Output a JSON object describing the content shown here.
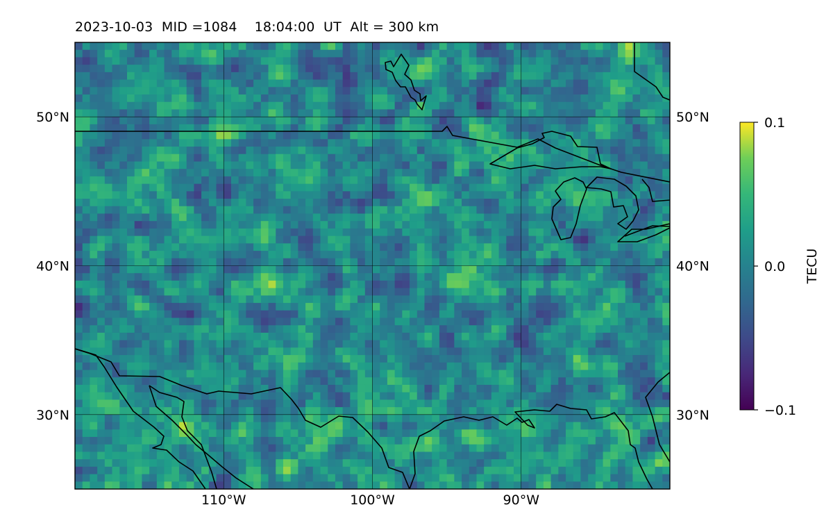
{
  "title": "2023-10-03  MID =1084    18:04:00  UT  Alt = 300 km",
  "chart_data": {
    "type": "heatmap",
    "title": "2023-10-03  MID =1084    18:04:00  UT  Alt = 300 km",
    "xlabel": "",
    "ylabel": "",
    "map_extent": {
      "lon": [
        -120,
        -80
      ],
      "lat": [
        25,
        55
      ]
    },
    "x_ticks": [
      {
        "value": -110,
        "label": "110°W"
      },
      {
        "value": -100,
        "label": "100°W"
      },
      {
        "value": -90,
        "label": "90°W"
      }
    ],
    "y_ticks": [
      {
        "value": 30,
        "label": "30°N"
      },
      {
        "value": 40,
        "label": "40°N"
      },
      {
        "value": 50,
        "label": "50°N"
      }
    ],
    "grid": true,
    "colormap": "viridis",
    "colorbar": {
      "label": "TECU",
      "range": [
        -0.1,
        0.1
      ],
      "ticks": [
        {
          "value": 0.1,
          "label": "0.1"
        },
        {
          "value": 0.0,
          "label": "0.0"
        },
        {
          "value": -0.1,
          "label": "−0.1"
        }
      ],
      "placement": "right"
    },
    "cell_size_deg": 0.5
  }
}
